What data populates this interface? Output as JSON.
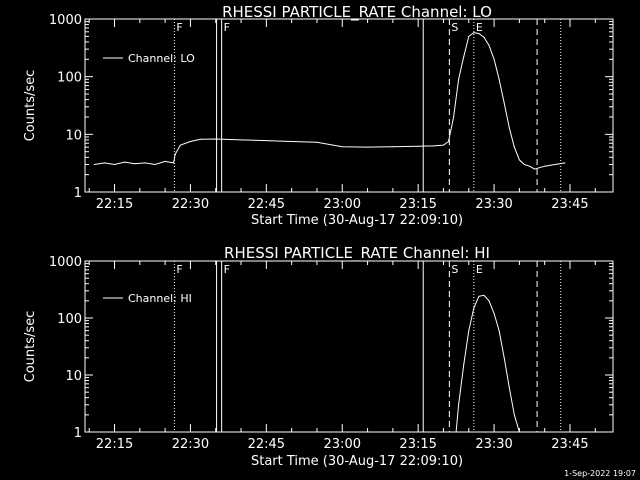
{
  "footer": {
    "date": "1-Sep-2022 19:07"
  },
  "chart_data": [
    {
      "type": "line",
      "title": "RHESSI PARTICLE_RATE Channel: LO",
      "xlabel": "Start Time (30-Aug-17 22:09:10)",
      "ylabel": "Counts/sec",
      "yscale": "log",
      "xlim": [
        "22:09:10",
        "23:53:30"
      ],
      "ylim": [
        1,
        1000
      ],
      "xticks": [
        "22:15",
        "22:30",
        "22:45",
        "23:00",
        "23:15",
        "23:30",
        "23:45"
      ],
      "yticks": [
        "1",
        "10",
        "100",
        "1000"
      ],
      "legend": {
        "labels": [
          "Channel: LO"
        ],
        "position": "upper-left"
      },
      "event_lines": [
        {
          "time": "22:26:50",
          "style": "dotted",
          "label": "F"
        },
        {
          "time": "22:35:10",
          "style": "solid",
          "label": ""
        },
        {
          "time": "22:36:10",
          "style": "solid",
          "label": "F"
        },
        {
          "time": "23:16:00",
          "style": "solid",
          "label": ""
        },
        {
          "time": "23:21:10",
          "style": "dashed",
          "label": "S"
        },
        {
          "time": "23:26:00",
          "style": "dotted",
          "label": "E"
        },
        {
          "time": "23:38:30",
          "style": "dashed",
          "label": ""
        },
        {
          "time": "23:43:10",
          "style": "dotted",
          "label": ""
        }
      ],
      "series": [
        {
          "name": "Channel: LO",
          "x": [
            "22:11:00",
            "22:13:00",
            "22:15:00",
            "22:17:00",
            "22:19:00",
            "22:21:00",
            "22:23:00",
            "22:25:00",
            "22:26:40",
            "22:27:00",
            "22:28:00",
            "22:30:00",
            "22:32:00",
            "22:35:00",
            "22:40:00",
            "22:45:00",
            "22:50:00",
            "22:55:00",
            "23:00:00",
            "23:05:00",
            "23:10:00",
            "23:15:00",
            "23:18:00",
            "23:20:00",
            "23:21:00",
            "23:22:00",
            "23:23:00",
            "23:24:00",
            "23:25:00",
            "23:26:00",
            "23:27:00",
            "23:28:00",
            "23:29:00",
            "23:30:00",
            "23:31:00",
            "23:32:00",
            "23:33:00",
            "23:34:00",
            "23:35:00",
            "23:36:00",
            "23:37:00",
            "23:38:00",
            "23:40:00",
            "23:42:00",
            "23:44:00"
          ],
          "y": [
            3.0,
            3.2,
            3.0,
            3.3,
            3.1,
            3.2,
            3.0,
            3.4,
            3.2,
            4.5,
            6.5,
            7.5,
            8.2,
            8.3,
            8.0,
            7.8,
            7.5,
            7.3,
            6.1,
            6.0,
            6.1,
            6.2,
            6.3,
            6.5,
            7.5,
            20,
            90,
            220,
            500,
            580,
            560,
            480,
            350,
            200,
            90,
            35,
            13,
            6,
            3.6,
            3.0,
            2.8,
            2.5,
            2.8,
            3.0,
            3.2
          ]
        }
      ]
    },
    {
      "type": "line",
      "title": "RHESSI PARTICLE_RATE Channel: HI",
      "xlabel": "Start Time (30-Aug-17 22:09:10)",
      "ylabel": "Counts/sec",
      "yscale": "log",
      "xlim": [
        "22:09:10",
        "23:53:30"
      ],
      "ylim": [
        1,
        1000
      ],
      "xticks": [
        "22:15",
        "22:30",
        "22:45",
        "23:00",
        "23:15",
        "23:30",
        "23:45"
      ],
      "yticks": [
        "1",
        "10",
        "100",
        "1000"
      ],
      "legend": {
        "labels": [
          "Channel: HI"
        ],
        "position": "upper-left"
      },
      "event_lines": [
        {
          "time": "22:26:50",
          "style": "dotted",
          "label": "F"
        },
        {
          "time": "22:35:10",
          "style": "solid",
          "label": ""
        },
        {
          "time": "22:36:10",
          "style": "solid",
          "label": "F"
        },
        {
          "time": "23:16:00",
          "style": "solid",
          "label": ""
        },
        {
          "time": "23:21:10",
          "style": "dashed",
          "label": "S"
        },
        {
          "time": "23:26:00",
          "style": "dotted",
          "label": "E"
        },
        {
          "time": "23:38:30",
          "style": "dashed",
          "label": ""
        },
        {
          "time": "23:43:10",
          "style": "dotted",
          "label": ""
        }
      ],
      "series": [
        {
          "name": "Channel: HI",
          "x": [
            "23:22:30",
            "23:23:00",
            "23:24:00",
            "23:25:00",
            "23:26:00",
            "23:27:00",
            "23:28:00",
            "23:29:00",
            "23:30:00",
            "23:31:00",
            "23:32:00",
            "23:33:00",
            "23:34:00",
            "23:35:00"
          ],
          "y": [
            1.0,
            3,
            15,
            60,
            150,
            240,
            250,
            200,
            120,
            60,
            20,
            6,
            2,
            1.0
          ]
        }
      ]
    }
  ]
}
